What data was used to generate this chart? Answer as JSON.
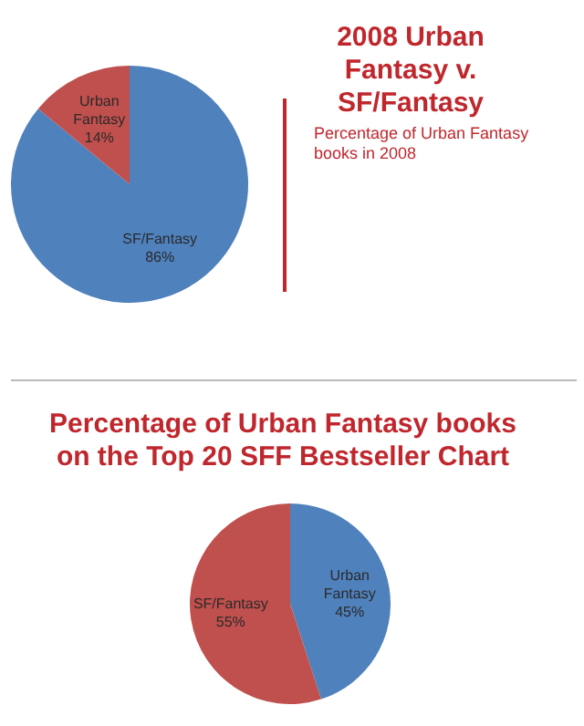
{
  "chart_data": [
    {
      "type": "pie",
      "title": "2008 Urban Fantasy v. SF/Fantasy",
      "categories": [
        "SF/Fantasy",
        "Urban Fantasy"
      ],
      "values": [
        86,
        14
      ],
      "colors": [
        "#4f81bd",
        "#c0504d"
      ],
      "value_labels": [
        "86%",
        "14%"
      ],
      "annotations": [
        "Percentage of Urban Fantasy books in 2008"
      ]
    },
    {
      "type": "pie",
      "title": "Percentage of Urban Fantasy books on the Top 20 SFF Bestseller Chart",
      "categories": [
        "Urban Fantasy",
        "SF/Fantasy"
      ],
      "values": [
        45,
        55
      ],
      "colors": [
        "#4f81bd",
        "#c0504d"
      ],
      "value_labels": [
        "45%",
        "55%"
      ]
    }
  ]
}
